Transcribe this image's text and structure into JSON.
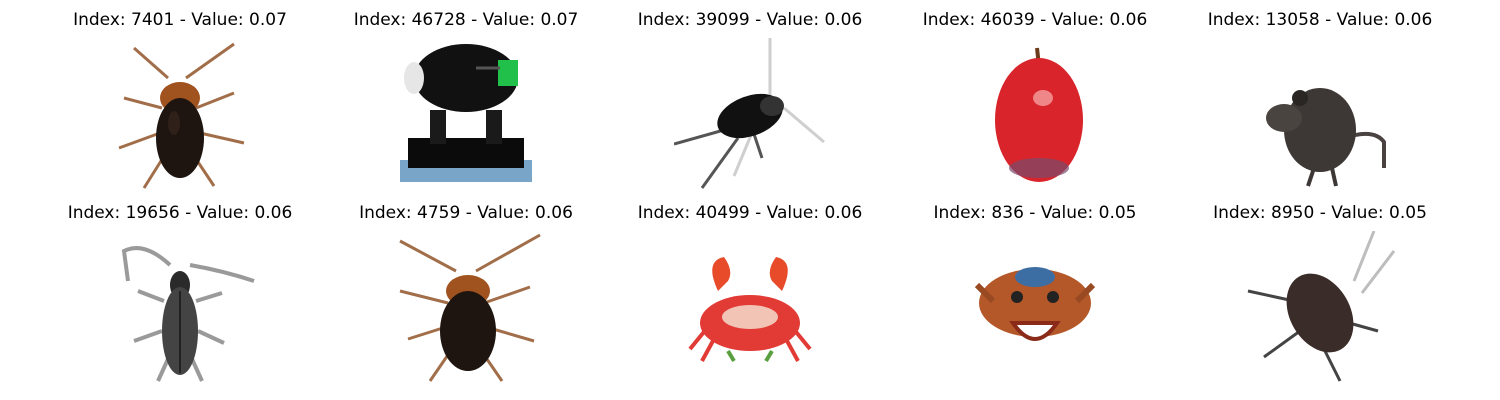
{
  "grid": {
    "cells": [
      {
        "caption": "Index: 7401 - Value: 0.07",
        "icon": "cockroach-icon"
      },
      {
        "caption": "Index: 46728 - Value: 0.07",
        "icon": "stage-light-icon"
      },
      {
        "caption": "Index: 39099 - Value: 0.06",
        "icon": "cricket-icon"
      },
      {
        "caption": "Index: 46039 - Value: 0.06",
        "icon": "apple-icon"
      },
      {
        "caption": "Index: 13058 - Value: 0.06",
        "icon": "mouse-icon"
      },
      {
        "caption": "Index: 19656 - Value: 0.06",
        "icon": "beetle-icon"
      },
      {
        "caption": "Index: 4759 - Value: 0.06",
        "icon": "cockroach-icon"
      },
      {
        "caption": "Index: 40499 - Value: 0.06",
        "icon": "crab-icon"
      },
      {
        "caption": "Index: 836 - Value: 0.05",
        "icon": "crab-face-icon"
      },
      {
        "caption": "Index: 8950 - Value: 0.05",
        "icon": "cockroach-icon"
      }
    ]
  }
}
